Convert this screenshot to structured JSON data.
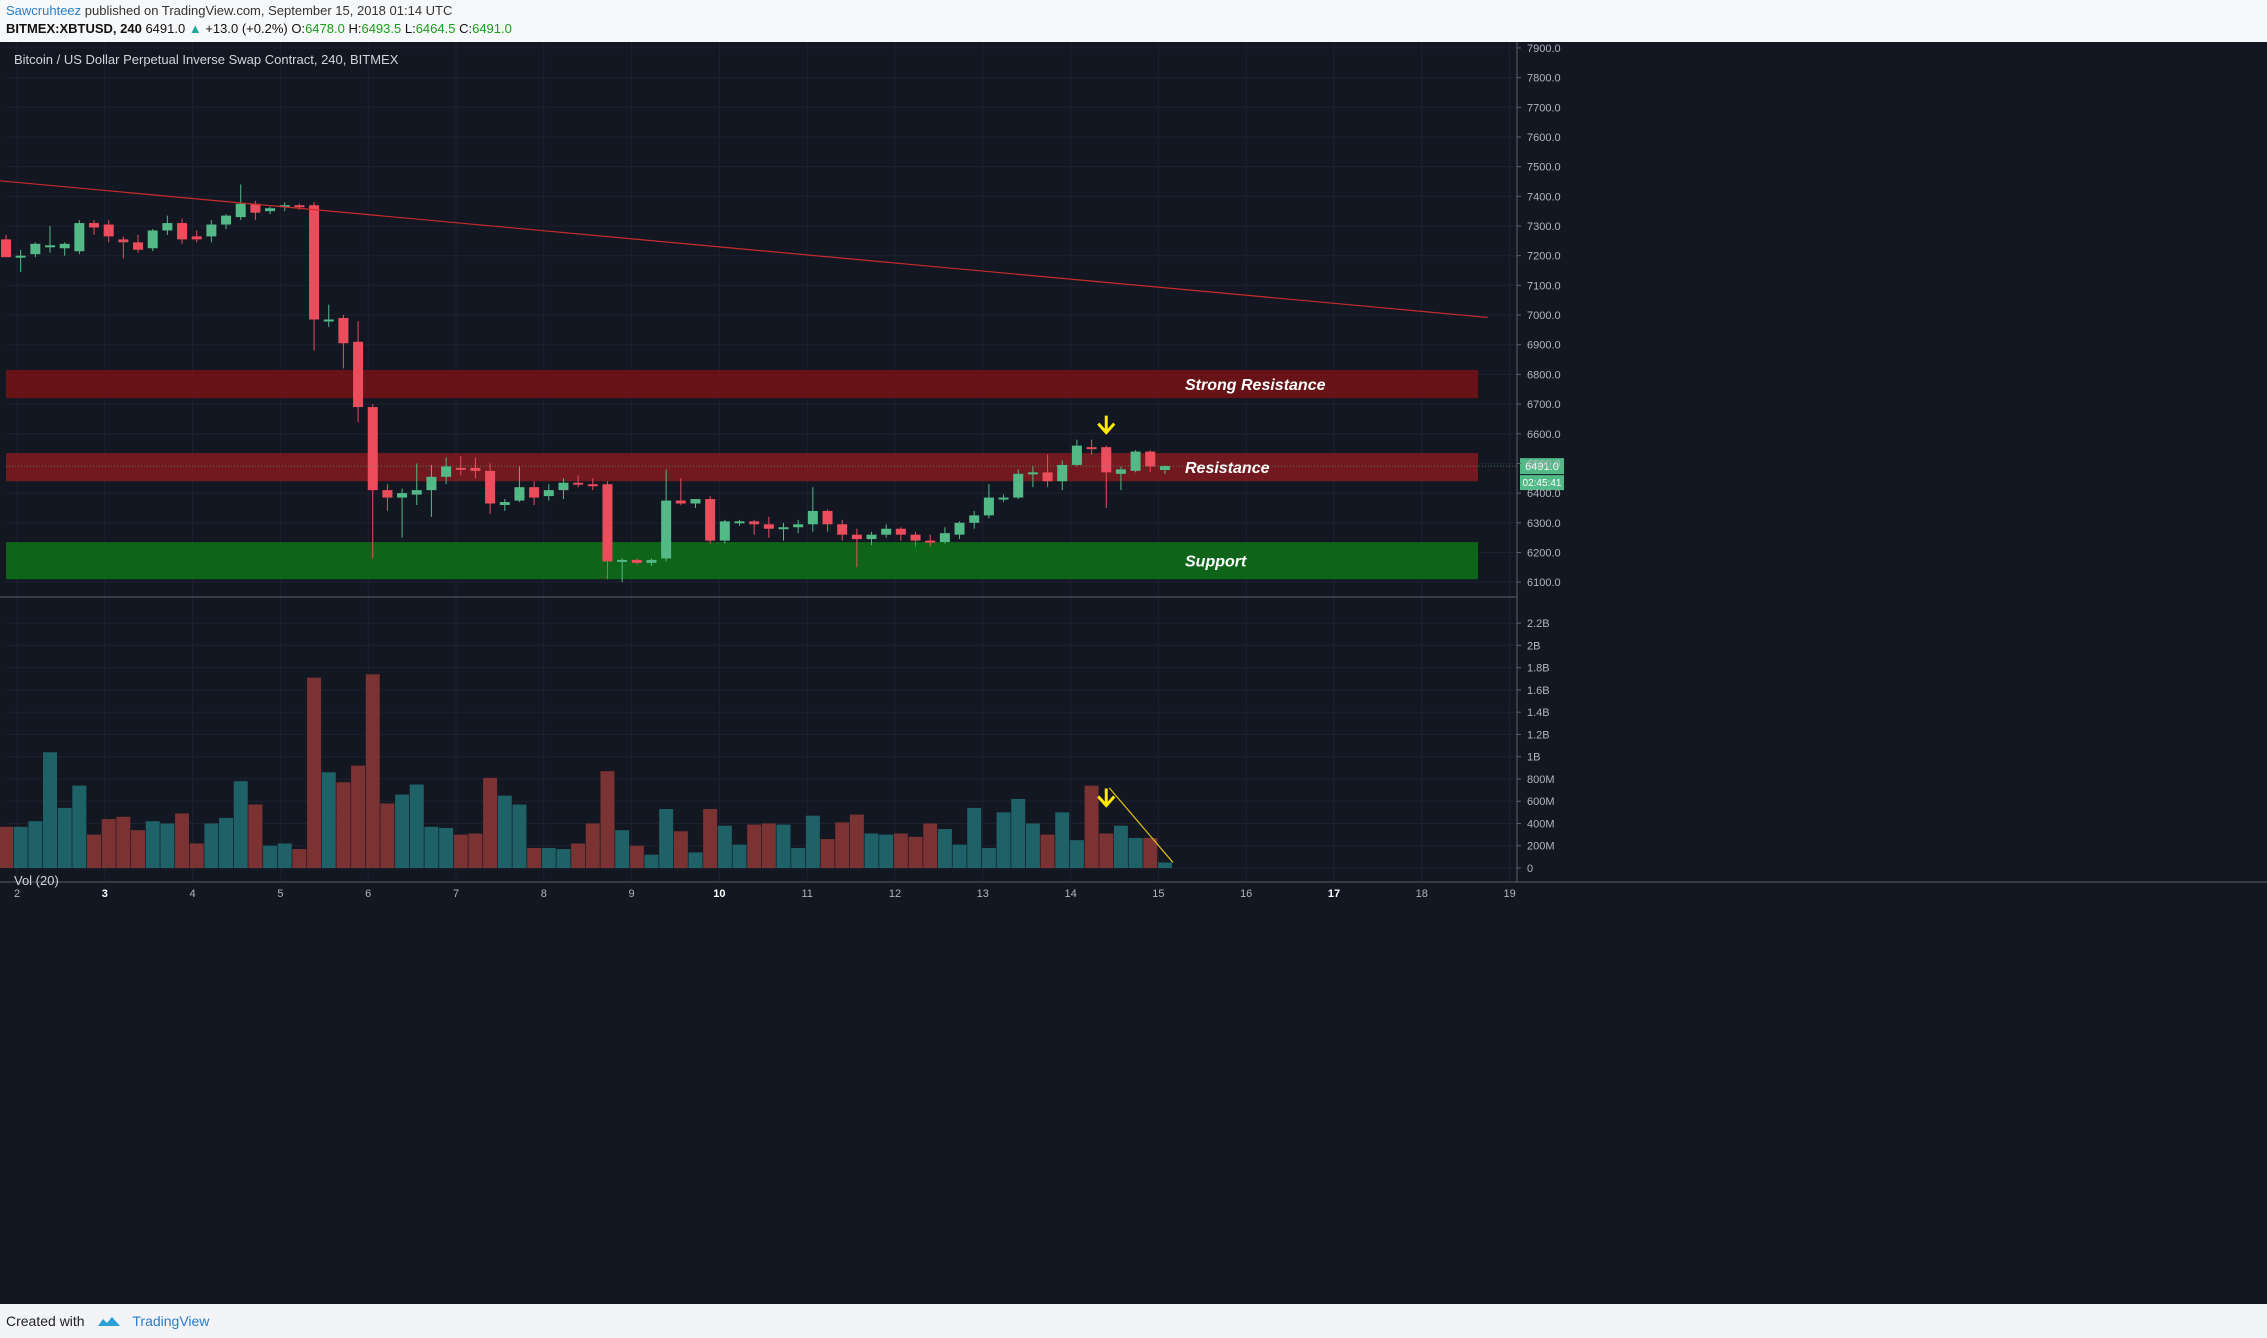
{
  "header": {
    "author": "Sawcruhteez",
    "published": "published on TradingView.com, September 15, 2018 01:14 UTC",
    "symbol": "BITMEX:XBTUSD, 240",
    "last": "6491.0",
    "change": "+13.0 (+0.2%)",
    "o_label": "O:",
    "o": "6478.0",
    "h_label": "H:",
    "h": "6493.5",
    "l_label": "L:",
    "l": "6464.5",
    "c_label": "C:",
    "c": "6491.0"
  },
  "chart_title": "Bitcoin / US Dollar Perpetual Inverse Swap Contract, 240, BITMEX",
  "volume_label": "Vol (20)",
  "price_label": "6491.0",
  "countdown_label": "02:45:41",
  "footer": {
    "created_with": "Created with",
    "brand": "TradingView"
  },
  "colors": {
    "background": "#131722",
    "up": "#53b987",
    "down": "#eb4d5c",
    "vol_up": "#1e6166",
    "vol_down": "#7b3232",
    "trendline": "#c92b2b",
    "strong_resistance": "#6e1216",
    "resistance": "#7a1a20",
    "support": "#0e6b18",
    "arrow": "#ffea00",
    "vol_trend": "#e0c21a"
  },
  "chart_data": {
    "type": "candlestick",
    "timeframe": "240",
    "x_ticks": [
      "2",
      "3",
      "4",
      "5",
      "6",
      "7",
      "8",
      "9",
      "10",
      "11",
      "12",
      "13",
      "14",
      "15",
      "16",
      "17",
      "18",
      "19"
    ],
    "bold_ticks": [
      "3",
      "10",
      "17"
    ],
    "y_ticks": [
      "7900.0",
      "7800.0",
      "7700.0",
      "7600.0",
      "7500.0",
      "7400.0",
      "7300.0",
      "7200.0",
      "7100.0",
      "7000.0",
      "6900.0",
      "6800.0",
      "6700.0",
      "6600.0",
      "6500.0",
      "6400.0",
      "6300.0",
      "6200.0",
      "6100.0"
    ],
    "ylim": [
      6050,
      7920
    ],
    "volume_ticks": [
      "2.2B",
      "2B",
      "1.8B",
      "1.6B",
      "1.4B",
      "1.2B",
      "1B",
      "800M",
      "600M",
      "400M",
      "200M",
      "0"
    ],
    "volume_ylim": [
      0,
      2300
    ],
    "candles": [
      {
        "o": 7255,
        "h": 7270,
        "l": 7200,
        "c": 7195,
        "v": 370
      },
      {
        "o": 7195,
        "h": 7220,
        "l": 7145,
        "c": 7200,
        "v": 370
      },
      {
        "o": 7205,
        "h": 7245,
        "l": 7195,
        "c": 7240,
        "v": 420
      },
      {
        "o": 7230,
        "h": 7300,
        "l": 7210,
        "c": 7235,
        "v": 1040
      },
      {
        "o": 7225,
        "h": 7245,
        "l": 7200,
        "c": 7240,
        "v": 540
      },
      {
        "o": 7215,
        "h": 7320,
        "l": 7205,
        "c": 7310,
        "v": 740
      },
      {
        "o": 7310,
        "h": 7320,
        "l": 7270,
        "c": 7295,
        "v": 300
      },
      {
        "o": 7305,
        "h": 7320,
        "l": 7245,
        "c": 7265,
        "v": 440
      },
      {
        "o": 7255,
        "h": 7265,
        "l": 7190,
        "c": 7245,
        "v": 460
      },
      {
        "o": 7245,
        "h": 7270,
        "l": 7210,
        "c": 7220,
        "v": 340
      },
      {
        "o": 7225,
        "h": 7290,
        "l": 7215,
        "c": 7285,
        "v": 420
      },
      {
        "o": 7285,
        "h": 7335,
        "l": 7270,
        "c": 7310,
        "v": 400
      },
      {
        "o": 7310,
        "h": 7325,
        "l": 7240,
        "c": 7255,
        "v": 490
      },
      {
        "o": 7265,
        "h": 7285,
        "l": 7245,
        "c": 7255,
        "v": 220
      },
      {
        "o": 7265,
        "h": 7320,
        "l": 7245,
        "c": 7305,
        "v": 400
      },
      {
        "o": 7305,
        "h": 7340,
        "l": 7290,
        "c": 7335,
        "v": 450
      },
      {
        "o": 7330,
        "h": 7440,
        "l": 7320,
        "c": 7375,
        "v": 780
      },
      {
        "o": 7375,
        "h": 7385,
        "l": 7320,
        "c": 7345,
        "v": 570
      },
      {
        "o": 7350,
        "h": 7365,
        "l": 7340,
        "c": 7360,
        "v": 200
      },
      {
        "o": 7365,
        "h": 7380,
        "l": 7350,
        "c": 7370,
        "v": 220
      },
      {
        "o": 7370,
        "h": 7375,
        "l": 7355,
        "c": 7365,
        "v": 170
      },
      {
        "o": 7370,
        "h": 7380,
        "l": 6880,
        "c": 6985,
        "v": 1710
      },
      {
        "o": 6985,
        "h": 7035,
        "l": 6960,
        "c": 6985,
        "v": 860
      },
      {
        "o": 6990,
        "h": 7000,
        "l": 6820,
        "c": 6905,
        "v": 770
      },
      {
        "o": 6910,
        "h": 6980,
        "l": 6640,
        "c": 6690,
        "v": 920
      },
      {
        "o": 6690,
        "h": 6700,
        "l": 6180,
        "c": 6410,
        "v": 1740
      },
      {
        "o": 6410,
        "h": 6430,
        "l": 6340,
        "c": 6385,
        "v": 580
      },
      {
        "o": 6385,
        "h": 6415,
        "l": 6250,
        "c": 6400,
        "v": 660
      },
      {
        "o": 6395,
        "h": 6500,
        "l": 6360,
        "c": 6410,
        "v": 750
      },
      {
        "o": 6410,
        "h": 6495,
        "l": 6320,
        "c": 6455,
        "v": 370
      },
      {
        "o": 6455,
        "h": 6520,
        "l": 6430,
        "c": 6490,
        "v": 360
      },
      {
        "o": 6485,
        "h": 6525,
        "l": 6460,
        "c": 6480,
        "v": 300
      },
      {
        "o": 6485,
        "h": 6520,
        "l": 6450,
        "c": 6475,
        "v": 310
      },
      {
        "o": 6475,
        "h": 6500,
        "l": 6330,
        "c": 6365,
        "v": 810
      },
      {
        "o": 6360,
        "h": 6380,
        "l": 6340,
        "c": 6370,
        "v": 650
      },
      {
        "o": 6375,
        "h": 6490,
        "l": 6370,
        "c": 6420,
        "v": 570
      },
      {
        "o": 6420,
        "h": 6440,
        "l": 6360,
        "c": 6385,
        "v": 180
      },
      {
        "o": 6390,
        "h": 6430,
        "l": 6375,
        "c": 6410,
        "v": 180
      },
      {
        "o": 6410,
        "h": 6450,
        "l": 6380,
        "c": 6435,
        "v": 170
      },
      {
        "o": 6435,
        "h": 6460,
        "l": 6420,
        "c": 6430,
        "v": 220
      },
      {
        "o": 6430,
        "h": 6450,
        "l": 6410,
        "c": 6425,
        "v": 400
      },
      {
        "o": 6430,
        "h": 6440,
        "l": 6110,
        "c": 6170,
        "v": 870
      },
      {
        "o": 6170,
        "h": 6180,
        "l": 6100,
        "c": 6175,
        "v": 340
      },
      {
        "o": 6175,
        "h": 6180,
        "l": 6160,
        "c": 6165,
        "v": 200
      },
      {
        "o": 6165,
        "h": 6180,
        "l": 6155,
        "c": 6175,
        "v": 120
      },
      {
        "o": 6180,
        "h": 6480,
        "l": 6170,
        "c": 6375,
        "v": 530
      },
      {
        "o": 6375,
        "h": 6450,
        "l": 6360,
        "c": 6365,
        "v": 330
      },
      {
        "o": 6365,
        "h": 6380,
        "l": 6350,
        "c": 6380,
        "v": 140
      },
      {
        "o": 6380,
        "h": 6390,
        "l": 6230,
        "c": 6240,
        "v": 530
      },
      {
        "o": 6240,
        "h": 6310,
        "l": 6230,
        "c": 6305,
        "v": 380
      },
      {
        "o": 6300,
        "h": 6310,
        "l": 6290,
        "c": 6305,
        "v": 210
      },
      {
        "o": 6305,
        "h": 6310,
        "l": 6260,
        "c": 6295,
        "v": 390
      },
      {
        "o": 6295,
        "h": 6320,
        "l": 6250,
        "c": 6280,
        "v": 400
      },
      {
        "o": 6280,
        "h": 6300,
        "l": 6240,
        "c": 6285,
        "v": 390
      },
      {
        "o": 6285,
        "h": 6310,
        "l": 6265,
        "c": 6295,
        "v": 180
      },
      {
        "o": 6295,
        "h": 6420,
        "l": 6270,
        "c": 6340,
        "v": 470
      },
      {
        "o": 6340,
        "h": 6345,
        "l": 6270,
        "c": 6295,
        "v": 260
      },
      {
        "o": 6295,
        "h": 6310,
        "l": 6240,
        "c": 6260,
        "v": 410
      },
      {
        "o": 6260,
        "h": 6280,
        "l": 6150,
        "c": 6245,
        "v": 480
      },
      {
        "o": 6245,
        "h": 6270,
        "l": 6225,
        "c": 6260,
        "v": 310
      },
      {
        "o": 6260,
        "h": 6295,
        "l": 6250,
        "c": 6280,
        "v": 300
      },
      {
        "o": 6280,
        "h": 6285,
        "l": 6240,
        "c": 6260,
        "v": 310
      },
      {
        "o": 6260,
        "h": 6270,
        "l": 6220,
        "c": 6240,
        "v": 280
      },
      {
        "o": 6240,
        "h": 6260,
        "l": 6220,
        "c": 6235,
        "v": 400
      },
      {
        "o": 6235,
        "h": 6285,
        "l": 6230,
        "c": 6265,
        "v": 350
      },
      {
        "o": 6260,
        "h": 6305,
        "l": 6245,
        "c": 6300,
        "v": 210
      },
      {
        "o": 6300,
        "h": 6340,
        "l": 6280,
        "c": 6325,
        "v": 540
      },
      {
        "o": 6325,
        "h": 6430,
        "l": 6315,
        "c": 6385,
        "v": 180
      },
      {
        "o": 6380,
        "h": 6395,
        "l": 6370,
        "c": 6385,
        "v": 500
      },
      {
        "o": 6385,
        "h": 6480,
        "l": 6380,
        "c": 6465,
        "v": 620
      },
      {
        "o": 6465,
        "h": 6490,
        "l": 6420,
        "c": 6470,
        "v": 400
      },
      {
        "o": 6470,
        "h": 6530,
        "l": 6420,
        "c": 6440,
        "v": 300
      },
      {
        "o": 6440,
        "h": 6510,
        "l": 6410,
        "c": 6495,
        "v": 500
      },
      {
        "o": 6495,
        "h": 6580,
        "l": 6490,
        "c": 6560,
        "v": 250
      },
      {
        "o": 6555,
        "h": 6580,
        "l": 6530,
        "c": 6550,
        "v": 740
      },
      {
        "o": 6555,
        "h": 6560,
        "l": 6350,
        "c": 6470,
        "v": 310
      },
      {
        "o": 6465,
        "h": 6490,
        "l": 6410,
        "c": 6480,
        "v": 380
      },
      {
        "o": 6475,
        "h": 6545,
        "l": 6470,
        "c": 6540,
        "v": 270
      },
      {
        "o": 6540,
        "h": 6545,
        "l": 6470,
        "c": 6490,
        "v": 270
      },
      {
        "o": 6478,
        "h": 6493.5,
        "l": 6464.5,
        "c": 6491,
        "v": 50
      }
    ],
    "trendline": {
      "start": {
        "candle": -1,
        "price": 7455
      },
      "end": {
        "candle": 101,
        "price": 6992
      }
    },
    "zones": [
      {
        "label": "Strong Resistance",
        "from": 6720,
        "to": 6815
      },
      {
        "label": "Resistance",
        "from": 6440,
        "to": 6535
      },
      {
        "label": "Support",
        "from": 6110,
        "to": 6235
      }
    ],
    "arrow_candle": 75,
    "volume_trend": {
      "start": {
        "candle": 75,
        "v": 720
      },
      "end": {
        "candle": 79,
        "v": 50
      }
    }
  }
}
